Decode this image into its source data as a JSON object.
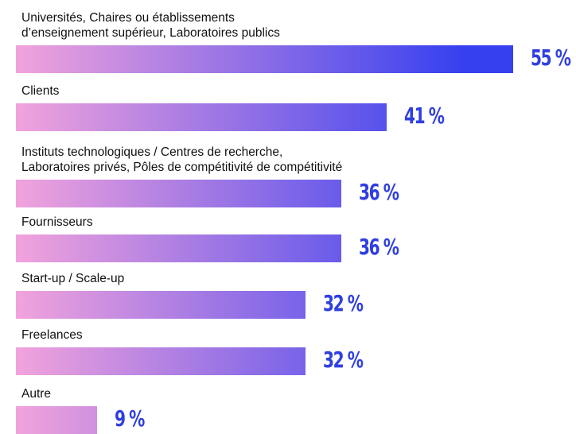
{
  "chart_data": {
    "type": "bar",
    "orientation": "horizontal",
    "categories": [
      "Universités, Chaires ou établissements\nd’enseignement supérieur, Laboratoires publics",
      "Clients",
      "Instituts technologiques / Centres de recherche,\nLaboratoires privés, Pôles de compétitivité de compétitivité",
      "Fournisseurs",
      "Start-up / Scale-up",
      "Freelances",
      "Autre"
    ],
    "values": [
      55,
      41,
      36,
      36,
      32,
      32,
      9
    ],
    "value_labels": [
      "55 %",
      "41 %",
      "36 %",
      "36 %",
      "32 %",
      "32 %",
      "9 %"
    ],
    "color": [
      "#f2a3dc",
      "#3640ef"
    ],
    "label_color": "#2f3fe0"
  }
}
